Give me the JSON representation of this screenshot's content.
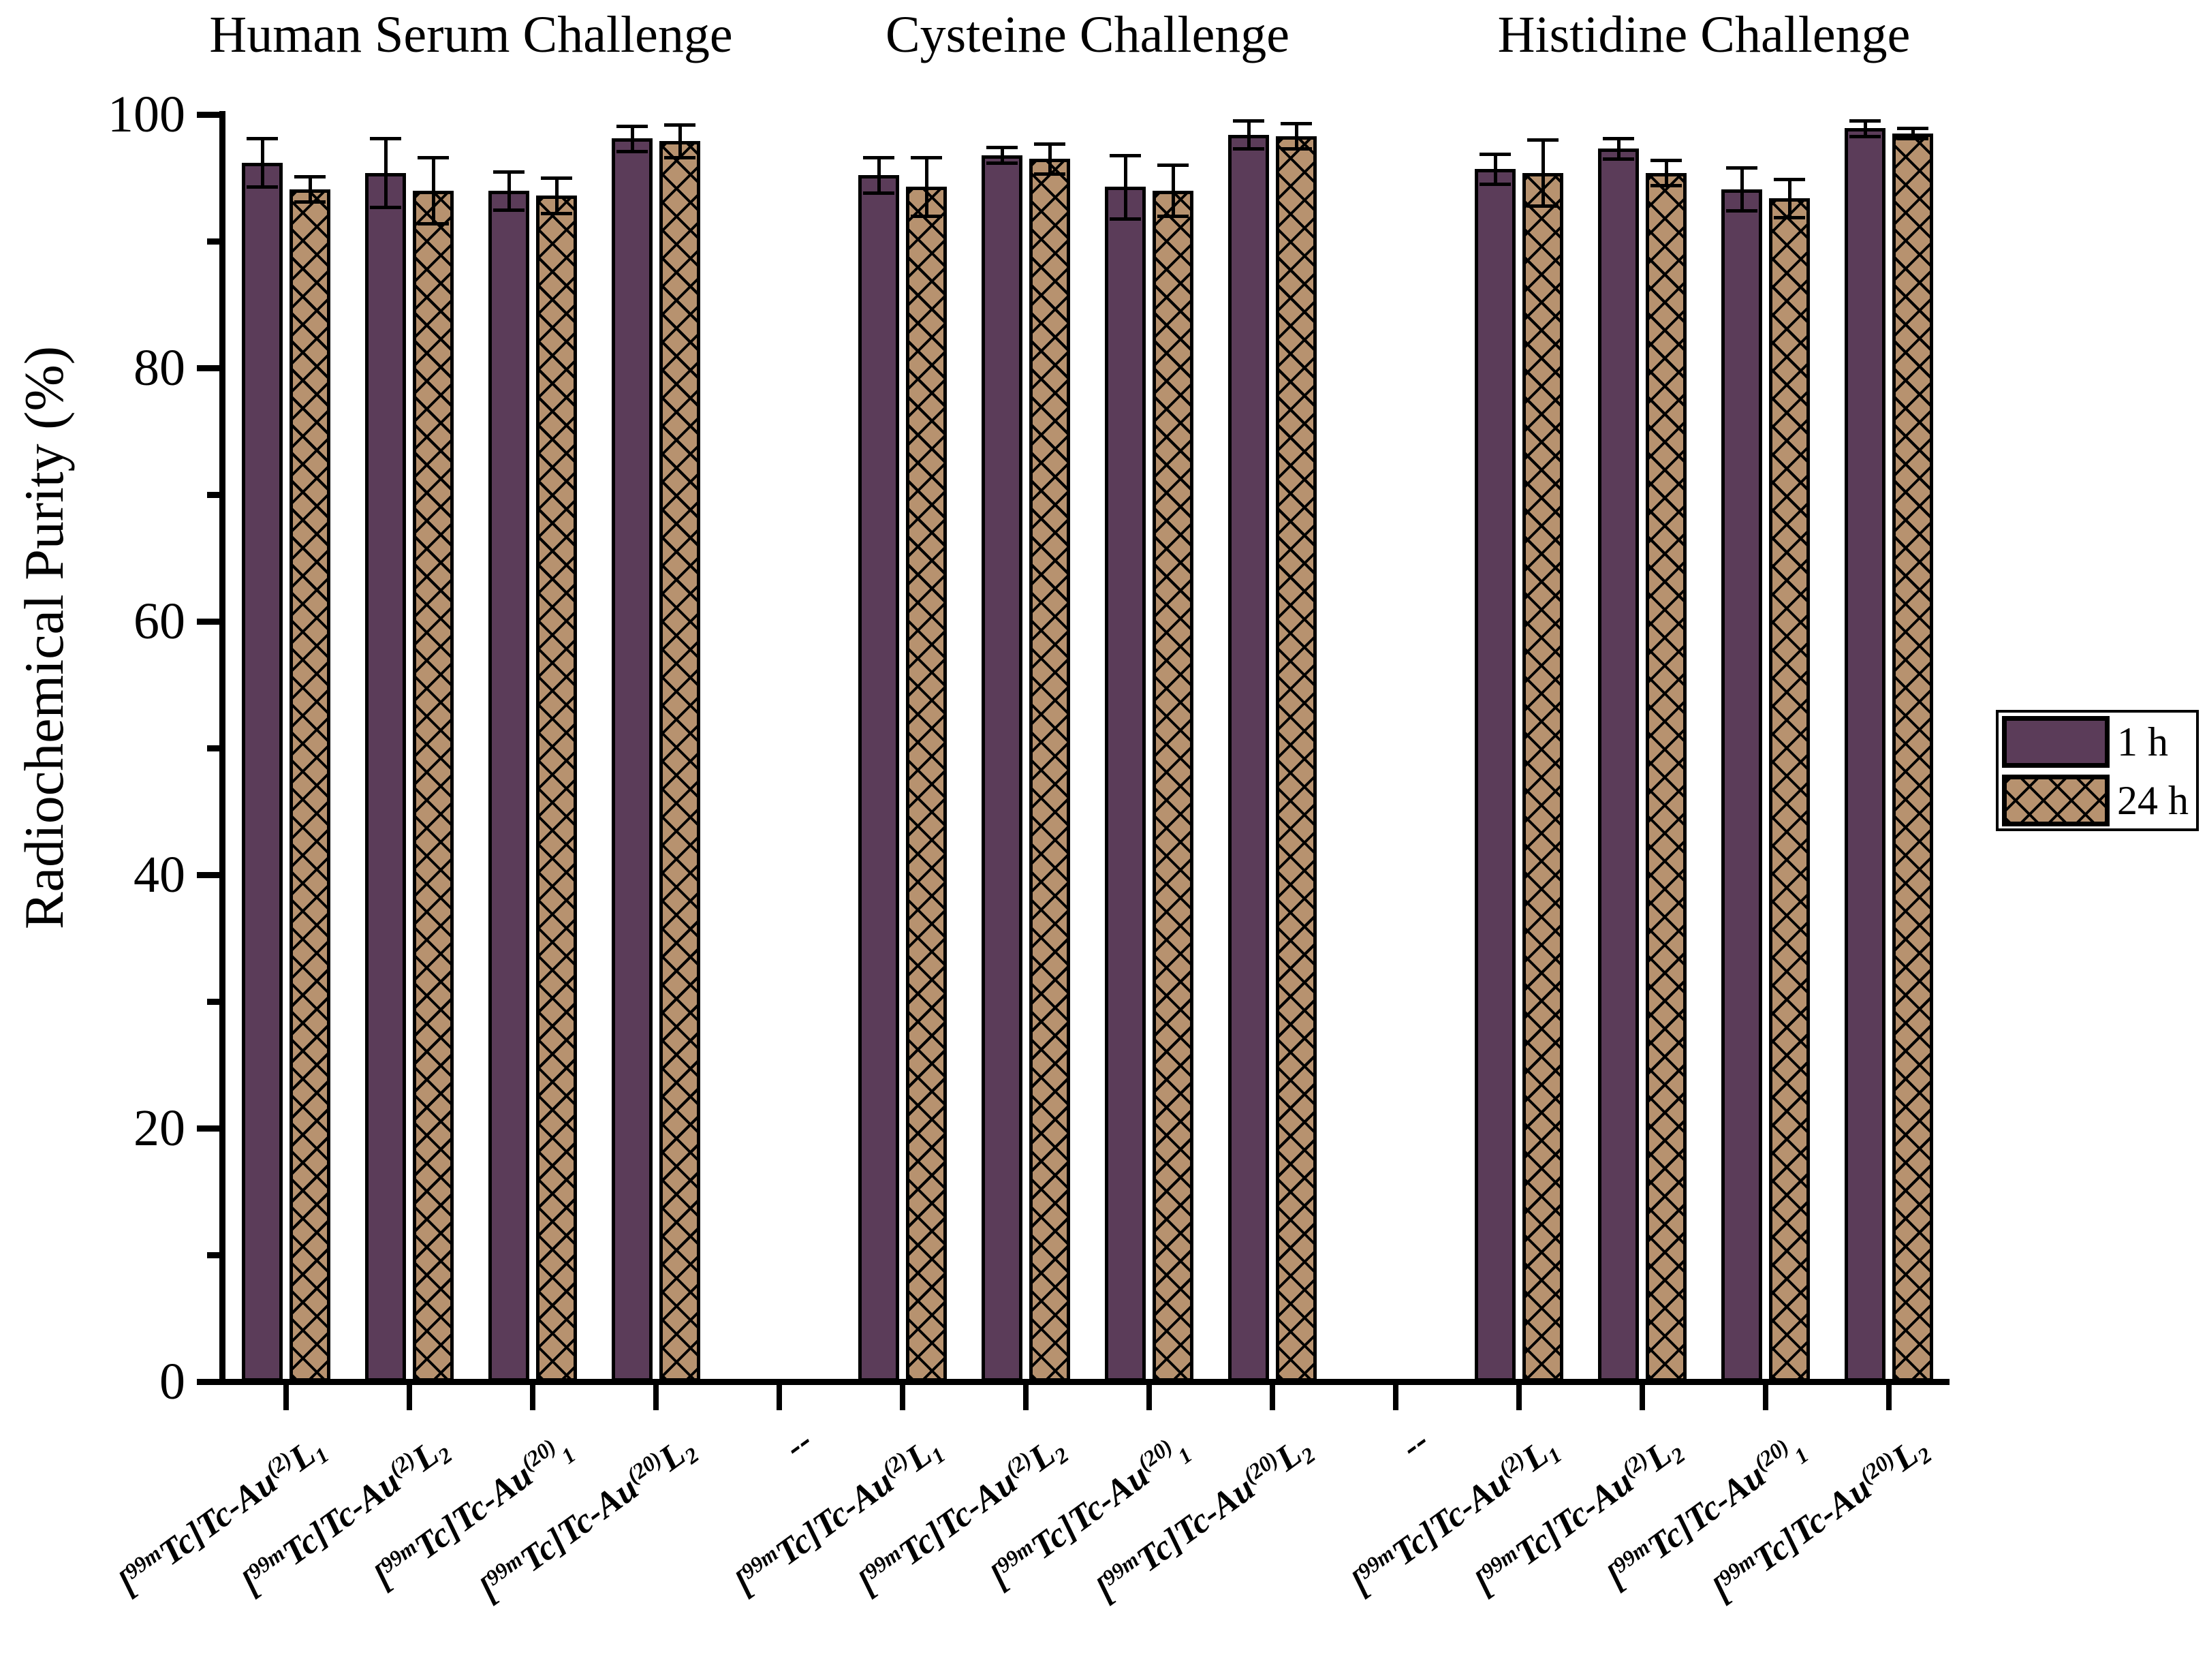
{
  "chart_data": {
    "type": "bar",
    "title": "",
    "xlabel": "",
    "ylabel": "Radiochemical Purity (%)",
    "ylim": [
      0,
      100
    ],
    "yticks_major": [
      0,
      20,
      40,
      60,
      80,
      100
    ],
    "yticks_minor": [
      10,
      30,
      50,
      70,
      90
    ],
    "grid": "off",
    "spacer_label": "--",
    "legend": {
      "position": "right",
      "entries": [
        {
          "label": "1 h",
          "fill": "#5b3c59",
          "pattern": "solid"
        },
        {
          "label": "24 h",
          "fill": "#b7926f",
          "pattern": "crosshatch"
        }
      ]
    },
    "groups": [
      {
        "title": "Human Serum Challenge",
        "categories": [
          "[^{99m}Tc]Tc-Au^{(2)}L_{1}",
          "[^{99m}Tc]Tc-Au^{(2)}L_{2}",
          "[^{99m}Tc]Tc-Au^{(20)}_{1}",
          "[^{99m}Tc]Tc-Au^{(20)}L_{2}"
        ],
        "series": [
          {
            "name": "1 h",
            "values": [
              96.2,
              95.4,
              94.0,
              98.1
            ],
            "errors": [
              1.9,
              2.7,
              1.5,
              1.0
            ]
          },
          {
            "name": "24 h",
            "values": [
              94.1,
              94.0,
              93.6,
              97.9
            ],
            "errors": [
              1.0,
              2.6,
              1.4,
              1.3
            ]
          }
        ]
      },
      {
        "title": "Cysteine Challenge",
        "categories": [
          "[^{99m}Tc]Tc-Au^{(2)}L_{1}",
          "[^{99m}Tc]Tc-Au^{(2)}L_{2}",
          "[^{99m}Tc]Tc-Au^{(20)}_{1}",
          "[^{99m}Tc]Tc-Au^{(20)}L_{2}"
        ],
        "series": [
          {
            "name": "1 h",
            "values": [
              95.2,
              96.8,
              94.3,
              98.4
            ],
            "errors": [
              1.4,
              0.6,
              2.5,
              1.1
            ]
          },
          {
            "name": "24 h",
            "values": [
              94.3,
              96.5,
              94.0,
              98.3
            ],
            "errors": [
              2.3,
              1.2,
              2.0,
              1.0
            ]
          }
        ]
      },
      {
        "title": "Histidine Challenge",
        "categories": [
          "[^{99m}Tc]Tc-Au^{(2)}L_{1}",
          "[^{99m}Tc]Tc-Au^{(2)}L_{2}",
          "[^{99m}Tc]Tc-Au^{(20)}_{1}",
          "[^{99m}Tc]Tc-Au^{(20)}L_{2}"
        ],
        "series": [
          {
            "name": "1 h",
            "values": [
              95.7,
              97.3,
              94.1,
              98.9
            ],
            "errors": [
              1.2,
              0.8,
              1.7,
              0.6
            ]
          },
          {
            "name": "24 h",
            "values": [
              95.4,
              95.4,
              93.4,
              98.5
            ],
            "errors": [
              2.6,
              1.0,
              1.5,
              0.4
            ]
          }
        ]
      }
    ]
  }
}
